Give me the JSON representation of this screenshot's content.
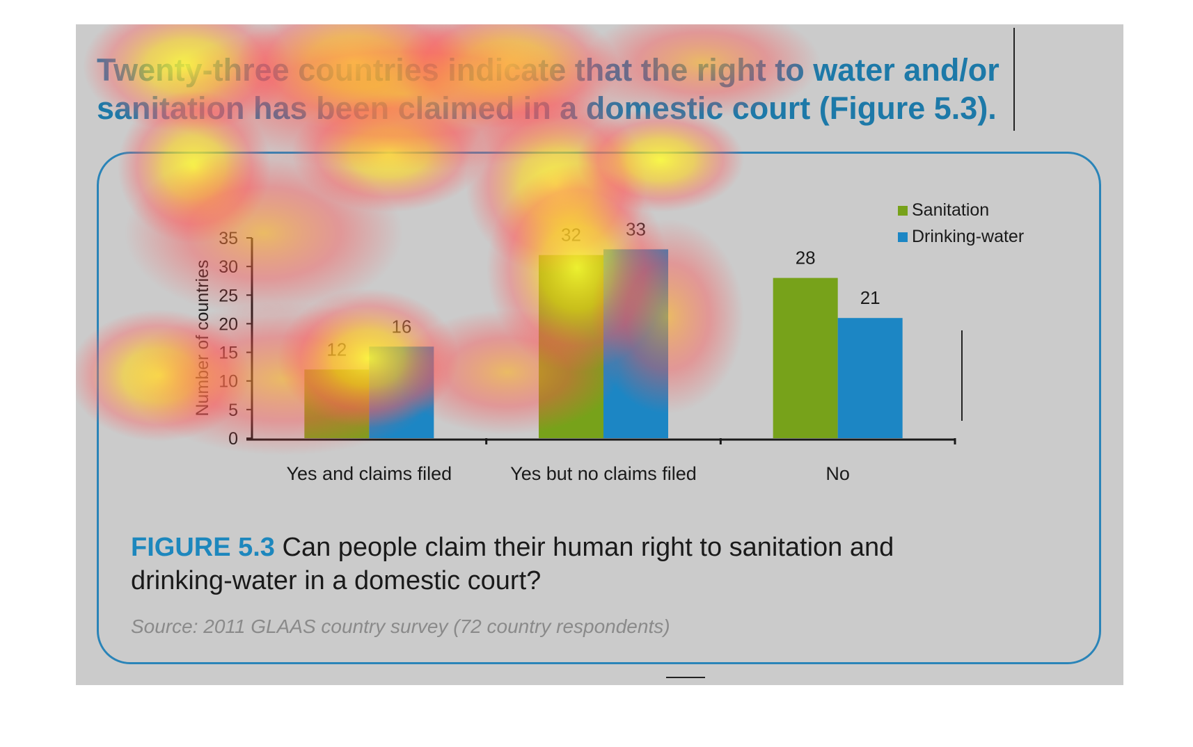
{
  "headline": "Twenty-three countries indicate that the right to water and/or sanitation has been claimed in a domestic court (Figure 5.3).",
  "caption": {
    "label": "FIGURE 5.3",
    "text": " Can people claim their human right to sanitation and drinking-water in a domestic court?"
  },
  "source": "Source: 2011 GLAAS country survey (72 country respondents)",
  "colors": {
    "sanitation": "#77a21a",
    "drinking_water": "#1c86c4",
    "frame": "#2a84b8",
    "panel": "#cbcbcb"
  },
  "chart_data": {
    "type": "bar",
    "categories": [
      "Yes and claims filed",
      "Yes but no claims filed",
      "No"
    ],
    "series": [
      {
        "name": "Sanitation",
        "values": [
          12,
          32,
          28
        ],
        "color": "#77a21a"
      },
      {
        "name": "Drinking-water",
        "values": [
          16,
          33,
          21
        ],
        "color": "#1c86c4"
      }
    ],
    "ylabel": "Number of countries",
    "xlabel": "",
    "ylim": [
      0,
      35
    ],
    "yticks": [
      0,
      5,
      10,
      15,
      20,
      25,
      30,
      35
    ],
    "legend": "top-right",
    "grid": false,
    "data_labels": true
  },
  "overlay": "attention heatmap"
}
